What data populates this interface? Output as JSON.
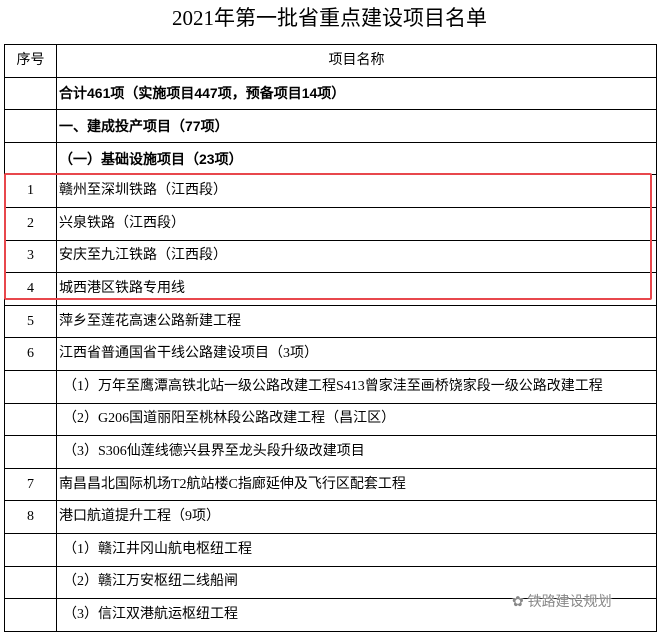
{
  "title": "2021年第一批省重点建设项目名单",
  "table": {
    "headers": [
      "序号",
      "项目名称"
    ],
    "rows": [
      {
        "no": "",
        "name": "合计461项（实施项目447项，预备项目14项）",
        "style": "bold"
      },
      {
        "no": "",
        "name": "一、建成投产项目（77项）",
        "style": "bold"
      },
      {
        "no": "",
        "name": "（一）基础设施项目（23项）",
        "style": "bold"
      },
      {
        "no": "1",
        "name": "赣州至深圳铁路（江西段）",
        "style": "highlight"
      },
      {
        "no": "2",
        "name": "兴泉铁路（江西段）",
        "style": "highlight"
      },
      {
        "no": "3",
        "name": "安庆至九江铁路（江西段）",
        "style": "highlight"
      },
      {
        "no": "4",
        "name": "城西港区铁路专用线",
        "style": "highlight"
      },
      {
        "no": "5",
        "name": "萍乡至莲花高速公路新建工程",
        "style": ""
      },
      {
        "no": "6",
        "name": "江西省普通国省干线公路建设项目（3项）",
        "style": ""
      },
      {
        "no": "",
        "name": "（1）万年至鹰潭高铁北站一级公路改建工程S413曾家洼至画桥饶家段一级公路改建工程",
        "style": "sub"
      },
      {
        "no": "",
        "name": "（2）G206国道丽阳至桃林段公路改建工程（昌江区）",
        "style": "sub"
      },
      {
        "no": "",
        "name": "（3）S306仙莲线德兴县界至龙头段升级改建项目",
        "style": "sub"
      },
      {
        "no": "7",
        "name": "南昌昌北国际机场T2航站楼C指廊延伸及飞行区配套工程",
        "style": ""
      },
      {
        "no": "8",
        "name": "港口航道提升工程（9项）",
        "style": ""
      },
      {
        "no": "",
        "name": "（1）赣江井冈山航电枢纽工程",
        "style": "sub"
      },
      {
        "no": "",
        "name": "（2）赣江万安枢纽二线船闸",
        "style": "sub"
      },
      {
        "no": "",
        "name": "（3）信江双港航运枢纽工程",
        "style": "sub"
      }
    ]
  },
  "highlight_color": "#e8474c",
  "watermark": "铁路建设规划"
}
